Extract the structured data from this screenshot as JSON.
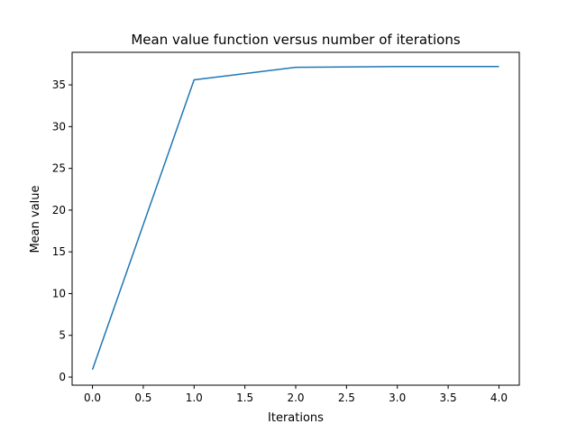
{
  "chart_data": {
    "type": "line",
    "title": "Mean value function versus number of iterations",
    "xlabel": "Iterations",
    "ylabel": "Mean value",
    "xlim": [
      -0.2,
      4.2
    ],
    "ylim": [
      -0.97,
      38.9
    ],
    "xticks": [
      "0.0",
      "0.5",
      "1.0",
      "1.5",
      "2.0",
      "2.5",
      "3.0",
      "3.5",
      "4.0"
    ],
    "yticks": [
      "0",
      "5",
      "10",
      "15",
      "20",
      "25",
      "30",
      "35"
    ],
    "grid": false,
    "series": [
      {
        "color": "#1f77b4",
        "x": [
          0,
          1,
          2,
          3,
          4
        ],
        "y": [
          0.9,
          35.6,
          37.1,
          37.2,
          37.2
        ]
      }
    ]
  }
}
